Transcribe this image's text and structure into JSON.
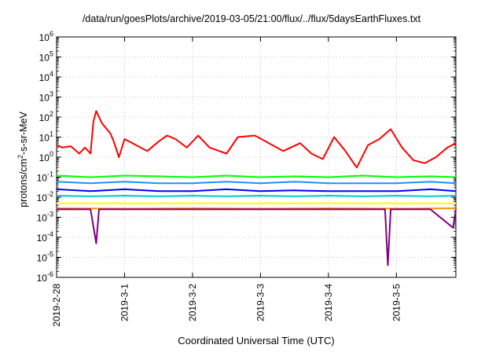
{
  "chart_data": {
    "type": "line",
    "title": "/data/run/goesPlots/archive/2019-03-05/21:00/flux/../flux/5daysEarthFluxes.txt",
    "xlabel": "Coordinated Universal Time (UTC)",
    "ylabel": "protons/cm2-s-sr-MeV",
    "ylabel_parts": {
      "before": "protons/cm",
      "sup": "2",
      "after": "-s-sr-MeV"
    },
    "yscale": "log",
    "ylim": [
      1e-06,
      1000000.0
    ],
    "y_ticks": [
      {
        "value": 1e-06,
        "base": "10",
        "exp": "-6"
      },
      {
        "value": 1e-05,
        "base": "10",
        "exp": "-5"
      },
      {
        "value": 0.0001,
        "base": "10",
        "exp": "-4"
      },
      {
        "value": 0.001,
        "base": "10",
        "exp": "-3"
      },
      {
        "value": 0.01,
        "base": "10",
        "exp": "-2"
      },
      {
        "value": 0.1,
        "base": "10",
        "exp": "-1"
      },
      {
        "value": 1,
        "base": "10",
        "exp": "0"
      },
      {
        "value": 10,
        "base": "10",
        "exp": "1"
      },
      {
        "value": 100,
        "base": "10",
        "exp": "2"
      },
      {
        "value": 1000,
        "base": "10",
        "exp": "3"
      },
      {
        "value": 10000,
        "base": "10",
        "exp": "4"
      },
      {
        "value": 100000,
        "base": "10",
        "exp": "5"
      },
      {
        "value": 1000000,
        "base": "10",
        "exp": "6"
      }
    ],
    "xlim": [
      "2019-02-28T00:00",
      "2019-03-05T21:00"
    ],
    "x_ticks": [
      "2019-2-28",
      "2019-3-1",
      "2019-3-2",
      "2019-3-3",
      "2019-3-4",
      "2019-3-5"
    ],
    "grid": true,
    "series": [
      {
        "color": "#ff0000",
        "x": [
          "2019-02-28T00:00",
          "2019-02-28T02:00",
          "2019-02-28T05:00",
          "2019-02-28T08:00",
          "2019-02-28T10:00",
          "2019-02-28T12:00",
          "2019-02-28T13:00",
          "2019-02-28T14:00",
          "2019-02-28T15:00",
          "2019-02-28T16:00",
          "2019-02-28T19:00",
          "2019-02-28T20:00",
          "2019-02-28T22:00",
          "2019-03-01T00:00",
          "2019-03-01T04:00",
          "2019-03-01T08:00",
          "2019-03-01T12:00",
          "2019-03-01T15:00",
          "2019-03-01T18:00",
          "2019-03-01T22:00",
          "2019-03-02T02:00",
          "2019-03-02T06:00",
          "2019-03-02T12:00",
          "2019-03-02T16:00",
          "2019-03-02T22:00",
          "2019-03-03T02:00",
          "2019-03-03T08:00",
          "2019-03-03T14:00",
          "2019-03-03T18:00",
          "2019-03-03T22:00",
          "2019-03-04T02:00",
          "2019-03-04T06:00",
          "2019-03-04T10:00",
          "2019-03-04T14:00",
          "2019-03-04T18:00",
          "2019-03-04T22:00",
          "2019-03-05T02:00",
          "2019-03-05T06:00",
          "2019-03-05T10:00",
          "2019-03-05T14:00",
          "2019-03-05T18:00",
          "2019-03-05T21:00"
        ],
        "values": [
          4,
          3,
          3.5,
          1.5,
          3,
          1.5,
          60,
          200,
          100,
          50,
          15,
          7,
          1,
          8,
          4,
          2,
          6,
          12,
          8,
          3,
          12,
          3,
          1.5,
          10,
          12,
          6,
          2,
          5,
          1.5,
          0.8,
          10,
          2,
          0.3,
          4,
          8,
          25,
          3,
          0.7,
          0.5,
          1,
          3,
          5
        ]
      },
      {
        "color": "#00ff00",
        "x": [
          "2019-02-28T00:00",
          "2019-02-28T12:00",
          "2019-03-01T00:00",
          "2019-03-01T12:00",
          "2019-03-02T00:00",
          "2019-03-02T12:00",
          "2019-03-03T00:00",
          "2019-03-03T12:00",
          "2019-03-04T00:00",
          "2019-03-04T12:00",
          "2019-03-05T00:00",
          "2019-03-05T12:00",
          "2019-03-05T21:00"
        ],
        "values": [
          0.12,
          0.1,
          0.12,
          0.11,
          0.1,
          0.12,
          0.1,
          0.11,
          0.1,
          0.12,
          0.1,
          0.11,
          0.1
        ]
      },
      {
        "color": "#1e90ff",
        "x": [
          "2019-02-28T00:00",
          "2019-02-28T12:00",
          "2019-03-01T00:00",
          "2019-03-01T12:00",
          "2019-03-02T00:00",
          "2019-03-02T12:00",
          "2019-03-03T00:00",
          "2019-03-03T12:00",
          "2019-03-04T00:00",
          "2019-03-04T12:00",
          "2019-03-05T00:00",
          "2019-03-05T12:00",
          "2019-03-05T21:00"
        ],
        "values": [
          0.06,
          0.05,
          0.06,
          0.05,
          0.05,
          0.06,
          0.05,
          0.06,
          0.05,
          0.05,
          0.05,
          0.06,
          0.05
        ]
      },
      {
        "color": "#0000ff",
        "x": [
          "2019-02-28T00:00",
          "2019-02-28T12:00",
          "2019-03-01T00:00",
          "2019-03-01T12:00",
          "2019-03-02T00:00",
          "2019-03-02T12:00",
          "2019-03-03T00:00",
          "2019-03-03T12:00",
          "2019-03-04T00:00",
          "2019-03-04T12:00",
          "2019-03-05T00:00",
          "2019-03-05T12:00",
          "2019-03-05T21:00"
        ],
        "values": [
          0.025,
          0.02,
          0.025,
          0.02,
          0.02,
          0.025,
          0.02,
          0.022,
          0.02,
          0.02,
          0.02,
          0.025,
          0.02
        ]
      },
      {
        "color": "#00ced1",
        "x": [
          "2019-02-28T00:00",
          "2019-02-28T12:00",
          "2019-03-01T00:00",
          "2019-03-01T12:00",
          "2019-03-02T00:00",
          "2019-03-02T12:00",
          "2019-03-03T00:00",
          "2019-03-03T12:00",
          "2019-03-04T00:00",
          "2019-03-04T12:00",
          "2019-03-05T00:00",
          "2019-03-05T12:00",
          "2019-03-05T21:00"
        ],
        "values": [
          0.012,
          0.011,
          0.012,
          0.011,
          0.012,
          0.011,
          0.012,
          0.011,
          0.012,
          0.011,
          0.012,
          0.011,
          0.012
        ]
      },
      {
        "color": "#ffff00",
        "x": [
          "2019-02-28T00:00",
          "2019-03-01T00:00",
          "2019-03-02T00:00",
          "2019-03-03T00:00",
          "2019-03-04T00:00",
          "2019-03-05T00:00",
          "2019-03-05T21:00"
        ],
        "values": [
          0.005,
          0.005,
          0.005,
          0.005,
          0.005,
          0.005,
          0.005
        ]
      },
      {
        "color": "#ff8c00",
        "x": [
          "2019-02-28T00:00",
          "2019-03-01T00:00",
          "2019-03-02T00:00",
          "2019-03-03T00:00",
          "2019-03-04T00:00",
          "2019-03-05T00:00",
          "2019-03-05T21:00"
        ],
        "values": [
          0.0028,
          0.0027,
          0.0028,
          0.0027,
          0.0028,
          0.0027,
          0.0028
        ]
      },
      {
        "color": "#800080",
        "x": [
          "2019-02-28T00:00",
          "2019-02-28T12:00",
          "2019-02-28T14:00",
          "2019-02-28T15:00",
          "2019-03-01T00:00",
          "2019-03-02T00:00",
          "2019-03-03T00:00",
          "2019-03-04T00:00",
          "2019-03-04T20:00",
          "2019-03-04T21:00",
          "2019-03-04T22:00",
          "2019-03-05T12:00",
          "2019-03-05T20:00",
          "2019-03-05T21:00"
        ],
        "values": [
          0.0025,
          0.0025,
          5e-05,
          0.0025,
          0.0025,
          0.0025,
          0.0025,
          0.0025,
          0.0025,
          4e-06,
          0.0025,
          0.0025,
          0.0003,
          0.0025
        ]
      }
    ]
  }
}
